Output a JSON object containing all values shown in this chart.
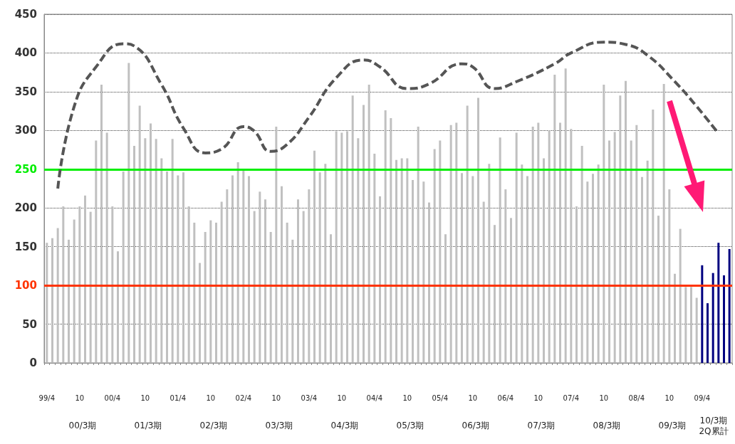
{
  "chart_data": {
    "type": "bar",
    "categories": [
      "99/4",
      null,
      null,
      null,
      null,
      null,
      "10",
      null,
      null,
      null,
      null,
      null,
      "00/4",
      null,
      null,
      null,
      null,
      null,
      "10",
      null,
      null,
      null,
      null,
      null,
      "01/4",
      null,
      null,
      null,
      null,
      null,
      "10",
      null,
      null,
      null,
      null,
      null,
      "02/4",
      null,
      null,
      null,
      null,
      null,
      "10",
      null,
      null,
      null,
      null,
      null,
      "03/4",
      null,
      null,
      null,
      null,
      null,
      "10",
      null,
      null,
      null,
      null,
      null,
      "04/4",
      null,
      null,
      null,
      null,
      null,
      "10",
      null,
      null,
      null,
      null,
      null,
      "05/4",
      null,
      null,
      null,
      null,
      null,
      "10",
      null,
      null,
      null,
      null,
      null,
      "06/4",
      null,
      null,
      null,
      null,
      null,
      "10",
      null,
      null,
      null,
      null,
      null,
      "07/4",
      null,
      null,
      null,
      null,
      null,
      "10",
      null,
      null,
      null,
      null,
      null,
      "08/4",
      null,
      null,
      null,
      null,
      null,
      "10",
      null,
      null,
      null,
      null,
      null,
      "09/4",
      null,
      null,
      null,
      null,
      null
    ],
    "series": [
      {
        "values": [
          155,
          161,
          174,
          202,
          159,
          185,
          202,
          216,
          195,
          287,
          359,
          297,
          202,
          144,
          247,
          387,
          280,
          332,
          290,
          309,
          289,
          264,
          247,
          289,
          242,
          246,
          202,
          181,
          129,
          169,
          184,
          181,
          208,
          224,
          242,
          259,
          250,
          241,
          196,
          221,
          211,
          169,
          305,
          228,
          181,
          159,
          211,
          196,
          224,
          274,
          246,
          257,
          166,
          299,
          297,
          299,
          345,
          290,
          333,
          359,
          270,
          215,
          326,
          316,
          262,
          264,
          264,
          236,
          305,
          234,
          207,
          276,
          287,
          166,
          307,
          310,
          245,
          332,
          241,
          342,
          208,
          257,
          178,
          291,
          224,
          187,
          297,
          256,
          241,
          305,
          310,
          264,
          300,
          372,
          310,
          380,
          302,
          202,
          280,
          234,
          244,
          256,
          359,
          287,
          298,
          345,
          364,
          287,
          307,
          240,
          261,
          327,
          190,
          360,
          224,
          115,
          173,
          98,
          98,
          84,
          126,
          77,
          116,
          155,
          113,
          147
        ],
        "colors": [
          "#c0c0c0",
          "#c0c0c0",
          "#c0c0c0",
          "#c0c0c0",
          "#c0c0c0",
          "#c0c0c0",
          "#c0c0c0",
          "#c0c0c0",
          "#c0c0c0",
          "#c0c0c0",
          "#c0c0c0",
          "#c0c0c0",
          "#c0c0c0",
          "#c0c0c0",
          "#c0c0c0",
          "#c0c0c0",
          "#c0c0c0",
          "#c0c0c0",
          "#c0c0c0",
          "#c0c0c0",
          "#c0c0c0",
          "#c0c0c0",
          "#c0c0c0",
          "#c0c0c0",
          "#c0c0c0",
          "#c0c0c0",
          "#c0c0c0",
          "#c0c0c0",
          "#c0c0c0",
          "#c0c0c0",
          "#c0c0c0",
          "#c0c0c0",
          "#c0c0c0",
          "#c0c0c0",
          "#c0c0c0",
          "#c0c0c0",
          "#c0c0c0",
          "#c0c0c0",
          "#c0c0c0",
          "#c0c0c0",
          "#c0c0c0",
          "#c0c0c0",
          "#c0c0c0",
          "#c0c0c0",
          "#c0c0c0",
          "#c0c0c0",
          "#c0c0c0",
          "#c0c0c0",
          "#c0c0c0",
          "#c0c0c0",
          "#c0c0c0",
          "#c0c0c0",
          "#c0c0c0",
          "#c0c0c0",
          "#c0c0c0",
          "#c0c0c0",
          "#c0c0c0",
          "#c0c0c0",
          "#c0c0c0",
          "#c0c0c0",
          "#c0c0c0",
          "#c0c0c0",
          "#c0c0c0",
          "#c0c0c0",
          "#c0c0c0",
          "#c0c0c0",
          "#c0c0c0",
          "#c0c0c0",
          "#c0c0c0",
          "#c0c0c0",
          "#c0c0c0",
          "#c0c0c0",
          "#c0c0c0",
          "#c0c0c0",
          "#c0c0c0",
          "#c0c0c0",
          "#c0c0c0",
          "#c0c0c0",
          "#c0c0c0",
          "#c0c0c0",
          "#c0c0c0",
          "#c0c0c0",
          "#c0c0c0",
          "#c0c0c0",
          "#c0c0c0",
          "#c0c0c0",
          "#c0c0c0",
          "#c0c0c0",
          "#c0c0c0",
          "#c0c0c0",
          "#c0c0c0",
          "#c0c0c0",
          "#c0c0c0",
          "#c0c0c0",
          "#c0c0c0",
          "#c0c0c0",
          "#c0c0c0",
          "#c0c0c0",
          "#c0c0c0",
          "#c0c0c0",
          "#c0c0c0",
          "#c0c0c0",
          "#c0c0c0",
          "#c0c0c0",
          "#c0c0c0",
          "#c0c0c0",
          "#c0c0c0",
          "#c0c0c0",
          "#c0c0c0",
          "#c0c0c0",
          "#c0c0c0",
          "#c0c0c0",
          "#c0c0c0",
          "#c0c0c0",
          "#c0c0c0",
          "#c0c0c0",
          "#c0c0c0",
          "#c0c0c0",
          "#c0c0c0",
          "#c0c0c0",
          "#000080",
          "#000080",
          "#000080",
          "#000080",
          "#000080",
          "#000080"
        ]
      },
      {
        "type": "line",
        "color": "#555555",
        "line_style": "dashed",
        "values": [
          null,
          null,
          225,
          null,
          null,
          331,
          null,
          null,
          null,
          382,
          null,
          null,
          null,
          null,
          412,
          null,
          409,
          null,
          null,
          null,
          null,
          359,
          null,
          null,
          null,
          303,
          null,
          null,
          null,
          271,
          null,
          null,
          276,
          null,
          null,
          null,
          305,
          null,
          299,
          null,
          null,
          273,
          null,
          null,
          282,
          null,
          null,
          null,
          317,
          null,
          null,
          null,
          null,
          368,
          null,
          null,
          null,
          null,
          391,
          null,
          null,
          382,
          null,
          null,
          null,
          null,
          354,
          null,
          null,
          null,
          360,
          null,
          null,
          null,
          null,
          null,
          386,
          null,
          382,
          null,
          null,
          null,
          354,
          null,
          null,
          null,
          363,
          null,
          null,
          null,
          null,
          null,
          null,
          386,
          null,
          null,
          400,
          null,
          null,
          null,
          null,
          null,
          414,
          null,
          null,
          null,
          411,
          null,
          null,
          null,
          397,
          null,
          null,
          null,
          null,
          363,
          null,
          null,
          null,
          331,
          null,
          null,
          null,
          296,
          null,
          null
        ]
      }
    ],
    "ylim": [
      0,
      450
    ],
    "yticks": [
      0,
      50,
      100,
      150,
      200,
      250,
      300,
      350,
      400,
      450
    ],
    "grid": "y",
    "ref_lines": [
      {
        "axis": "y",
        "value": 250,
        "color": "#00ee00"
      },
      {
        "axis": "y",
        "value": 100,
        "color": "#ff3300"
      }
    ],
    "annotations": [
      "00/3期",
      "01/3期",
      "02/3期",
      "03/3期",
      "04/3期",
      "05/3期",
      "06/3期",
      "07/3期",
      "08/3期",
      "09/3期",
      "10/3期\n2Q累計"
    ]
  }
}
